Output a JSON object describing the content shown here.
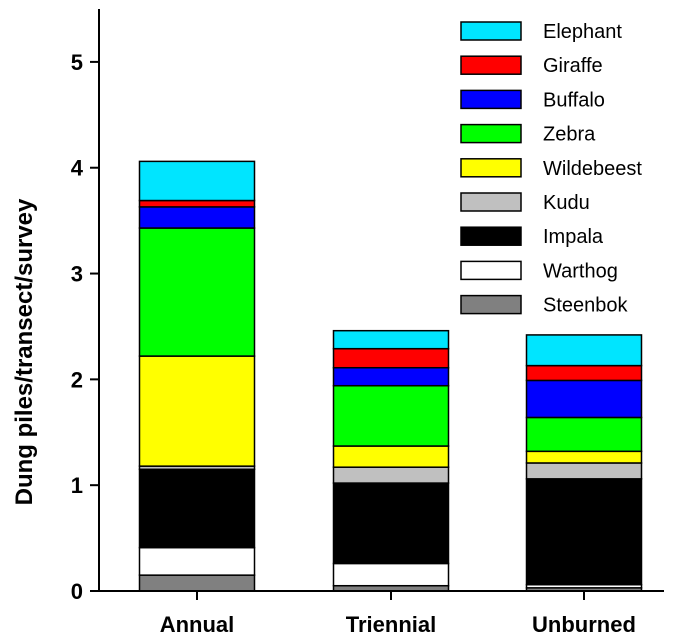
{
  "chart_data": {
    "type": "bar",
    "stacked": true,
    "title": "",
    "xlabel": "",
    "ylabel": "Dung piles/transect/survey",
    "ylim": [
      0,
      5.5
    ],
    "yticks": [
      "0",
      "1",
      "2",
      "3",
      "4",
      "5"
    ],
    "ytick_values": [
      0,
      1,
      2,
      3,
      4,
      5
    ],
    "categories": [
      "Annual",
      "Triennial",
      "Unburned"
    ],
    "grid": false,
    "legend_position": "top-right",
    "series": [
      {
        "name": "Steenbok",
        "color": "#808080",
        "values": [
          0.15,
          0.05,
          0.03
        ]
      },
      {
        "name": "Warthog",
        "color": "#ffffff",
        "values": [
          0.26,
          0.21,
          0.03
        ]
      },
      {
        "name": "Impala",
        "color": "#000000",
        "values": [
          0.74,
          0.76,
          1.0
        ]
      },
      {
        "name": "Kudu",
        "color": "#c0c0c0",
        "values": [
          0.03,
          0.15,
          0.15
        ]
      },
      {
        "name": "Wildebeest",
        "color": "#ffff00",
        "values": [
          1.04,
          0.2,
          0.11
        ]
      },
      {
        "name": "Zebra",
        "color": "#00ff00",
        "values": [
          1.21,
          0.57,
          0.32
        ]
      },
      {
        "name": "Buffalo",
        "color": "#0000ff",
        "values": [
          0.2,
          0.17,
          0.35
        ]
      },
      {
        "name": "Giraffe",
        "color": "#ff0000",
        "values": [
          0.06,
          0.18,
          0.14
        ]
      },
      {
        "name": "Elephant",
        "color": "#00e5ff",
        "values": [
          0.37,
          0.17,
          0.29
        ]
      }
    ],
    "legend_order": [
      "Elephant",
      "Giraffe",
      "Buffalo",
      "Zebra",
      "Wildebeest",
      "Kudu",
      "Impala",
      "Warthog",
      "Steenbok"
    ]
  }
}
